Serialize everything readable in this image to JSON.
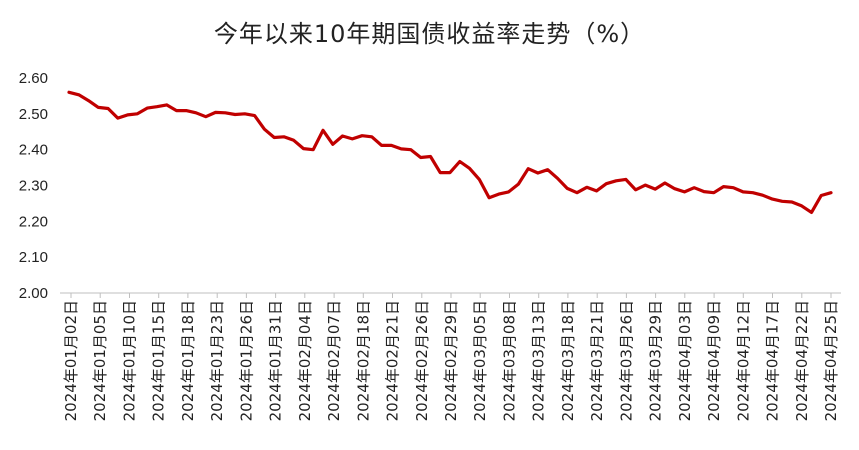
{
  "chart_data": {
    "type": "line",
    "title": "今年以来10年期国债收益率走势（%）",
    "xlabel": "",
    "ylabel": "",
    "ylim": [
      2.0,
      2.6
    ],
    "yticks": [
      "2.60",
      "2.50",
      "2.40",
      "2.30",
      "2.20",
      "2.10",
      "2.00"
    ],
    "grid": false,
    "legend": "none",
    "line_color": "#C00000",
    "x_tick_labels": [
      "2024年01月02日",
      "2024年01月05日",
      "2024年01月10日",
      "2024年01月15日",
      "2024年01月18日",
      "2024年01月23日",
      "2024年01月26日",
      "2024年01月31日",
      "2024年02月04日",
      "2024年02月07日",
      "2024年02月18日",
      "2024年02月21日",
      "2024年02月26日",
      "2024年02月29日",
      "2024年03月05日",
      "2024年03月08日",
      "2024年03月13日",
      "2024年03月18日",
      "2024年03月21日",
      "2024年03月26日",
      "2024年03月29日",
      "2024年04月03日",
      "2024年04月09日",
      "2024年04月12日",
      "2024年04月17日",
      "2024年04月22日",
      "2024年04月25日"
    ],
    "values": [
      2.56,
      2.553,
      2.537,
      2.518,
      2.515,
      2.488,
      2.497,
      2.5,
      2.516,
      2.52,
      2.525,
      2.509,
      2.509,
      2.503,
      2.492,
      2.504,
      2.503,
      2.498,
      2.5,
      2.495,
      2.457,
      2.434,
      2.436,
      2.426,
      2.403,
      2.4,
      2.454,
      2.415,
      2.438,
      2.43,
      2.439,
      2.436,
      2.412,
      2.412,
      2.402,
      2.4,
      2.378,
      2.381,
      2.336,
      2.336,
      2.367,
      2.348,
      2.317,
      2.266,
      2.276,
      2.282,
      2.304,
      2.347,
      2.335,
      2.344,
      2.32,
      2.292,
      2.28,
      2.295,
      2.285,
      2.305,
      2.313,
      2.317,
      2.288,
      2.301,
      2.29,
      2.307,
      2.291,
      2.282,
      2.294,
      2.283,
      2.28,
      2.297,
      2.294,
      2.282,
      2.28,
      2.273,
      2.262,
      2.256,
      2.254,
      2.243,
      2.225,
      2.272,
      2.28
    ]
  }
}
